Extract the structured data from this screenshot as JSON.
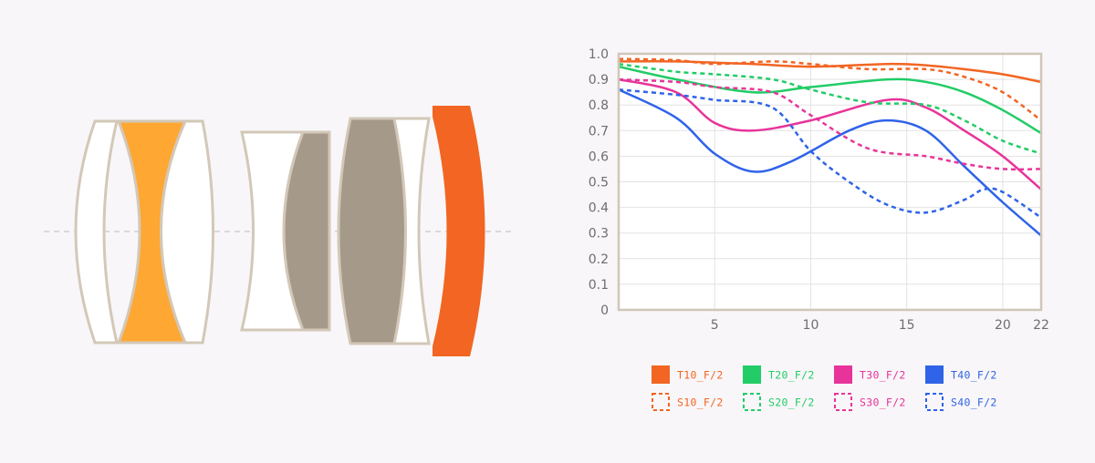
{
  "colors": {
    "background": "#f8f6f8",
    "lens_outline": "#d3c8b8",
    "lens_white": "#ffffff",
    "lens_orange_light": "#ffa733",
    "lens_taupe": "#a59a8a",
    "lens_orange_dark": "#f26522",
    "grid": "#dcdcdc",
    "axis": "#cfc6b8"
  },
  "lens_diagram": {
    "elements": [
      {
        "name": "lens-element-1",
        "fill": "white",
        "shape": "meniscus"
      },
      {
        "name": "lens-element-2",
        "fill": "orange-light",
        "shape": "biconcave"
      },
      {
        "name": "lens-element-3",
        "fill": "white",
        "shape": "plano-convex"
      },
      {
        "name": "lens-element-4",
        "fill": "white",
        "shape": "concave"
      },
      {
        "name": "lens-element-5",
        "fill": "taupe",
        "shape": "plano-convex"
      },
      {
        "name": "lens-element-6",
        "fill": "taupe",
        "shape": "biconvex"
      },
      {
        "name": "lens-element-7",
        "fill": "white",
        "shape": "meniscus"
      },
      {
        "name": "lens-element-8",
        "fill": "orange-dark",
        "shape": "meniscus"
      }
    ]
  },
  "chart_data": {
    "type": "line",
    "title": "",
    "xlabel": "",
    "ylabel": "",
    "xlim": [
      0,
      22
    ],
    "ylim": [
      0,
      1.0
    ],
    "xticks": [
      "5",
      "10",
      "15",
      "20",
      "22"
    ],
    "xtick_values": [
      5,
      10,
      15,
      20,
      22
    ],
    "yticks": [
      "0",
      "0.1",
      "0.2",
      "0.3",
      "0.4",
      "0.5",
      "0.6",
      "0.7",
      "0.8",
      "0.9",
      "1.0"
    ],
    "ytick_values": [
      0,
      0.1,
      0.2,
      0.3,
      0.4,
      0.5,
      0.6,
      0.7,
      0.8,
      0.9,
      1.0
    ],
    "grid": true,
    "legend_position": "bottom",
    "series": [
      {
        "name": "T10_F/2",
        "color": "#f26522",
        "dashed": false,
        "x": [
          0,
          3,
          7,
          10,
          14,
          16,
          18,
          20,
          22
        ],
        "y": [
          0.97,
          0.97,
          0.96,
          0.95,
          0.96,
          0.955,
          0.94,
          0.92,
          0.89
        ]
      },
      {
        "name": "T20_F/2",
        "color": "#22cc66",
        "dashed": false,
        "x": [
          0,
          3,
          7,
          10,
          14,
          16,
          18,
          20,
          22
        ],
        "y": [
          0.95,
          0.9,
          0.85,
          0.87,
          0.9,
          0.89,
          0.85,
          0.78,
          0.69
        ]
      },
      {
        "name": "T30_F/2",
        "color": "#e8349a",
        "dashed": false,
        "x": [
          0,
          3,
          5,
          7,
          10,
          14,
          16,
          18,
          20,
          22
        ],
        "y": [
          0.9,
          0.85,
          0.73,
          0.7,
          0.74,
          0.82,
          0.79,
          0.7,
          0.6,
          0.47
        ]
      },
      {
        "name": "T40_F/2",
        "color": "#2f63e8",
        "dashed": false,
        "x": [
          0,
          3,
          5,
          7,
          9,
          12,
          14,
          16,
          18,
          20,
          22
        ],
        "y": [
          0.86,
          0.75,
          0.61,
          0.54,
          0.58,
          0.7,
          0.74,
          0.7,
          0.56,
          0.42,
          0.29
        ]
      },
      {
        "name": "S10_F/2",
        "color": "#f26522",
        "dashed": true,
        "x": [
          0,
          3,
          5,
          8,
          10,
          13,
          16,
          18,
          20,
          22
        ],
        "y": [
          0.98,
          0.975,
          0.96,
          0.97,
          0.96,
          0.94,
          0.94,
          0.91,
          0.85,
          0.74
        ]
      },
      {
        "name": "S20_F/2",
        "color": "#22cc66",
        "dashed": true,
        "x": [
          0,
          3,
          5,
          8,
          10,
          13,
          16,
          18,
          20,
          22
        ],
        "y": [
          0.96,
          0.93,
          0.92,
          0.9,
          0.86,
          0.81,
          0.8,
          0.74,
          0.66,
          0.61
        ]
      },
      {
        "name": "S30_F/2",
        "color": "#e8349a",
        "dashed": true,
        "x": [
          0,
          3,
          5,
          8,
          10,
          13,
          16,
          18,
          20,
          22
        ],
        "y": [
          0.9,
          0.89,
          0.87,
          0.85,
          0.76,
          0.63,
          0.6,
          0.57,
          0.55,
          0.55
        ]
      },
      {
        "name": "S40_F/2",
        "color": "#2f63e8",
        "dashed": true,
        "x": [
          0,
          3,
          5,
          8,
          10,
          12,
          14,
          16,
          18,
          19,
          20,
          22
        ],
        "y": [
          0.86,
          0.84,
          0.82,
          0.79,
          0.62,
          0.5,
          0.41,
          0.38,
          0.43,
          0.47,
          0.46,
          0.36
        ]
      }
    ]
  }
}
